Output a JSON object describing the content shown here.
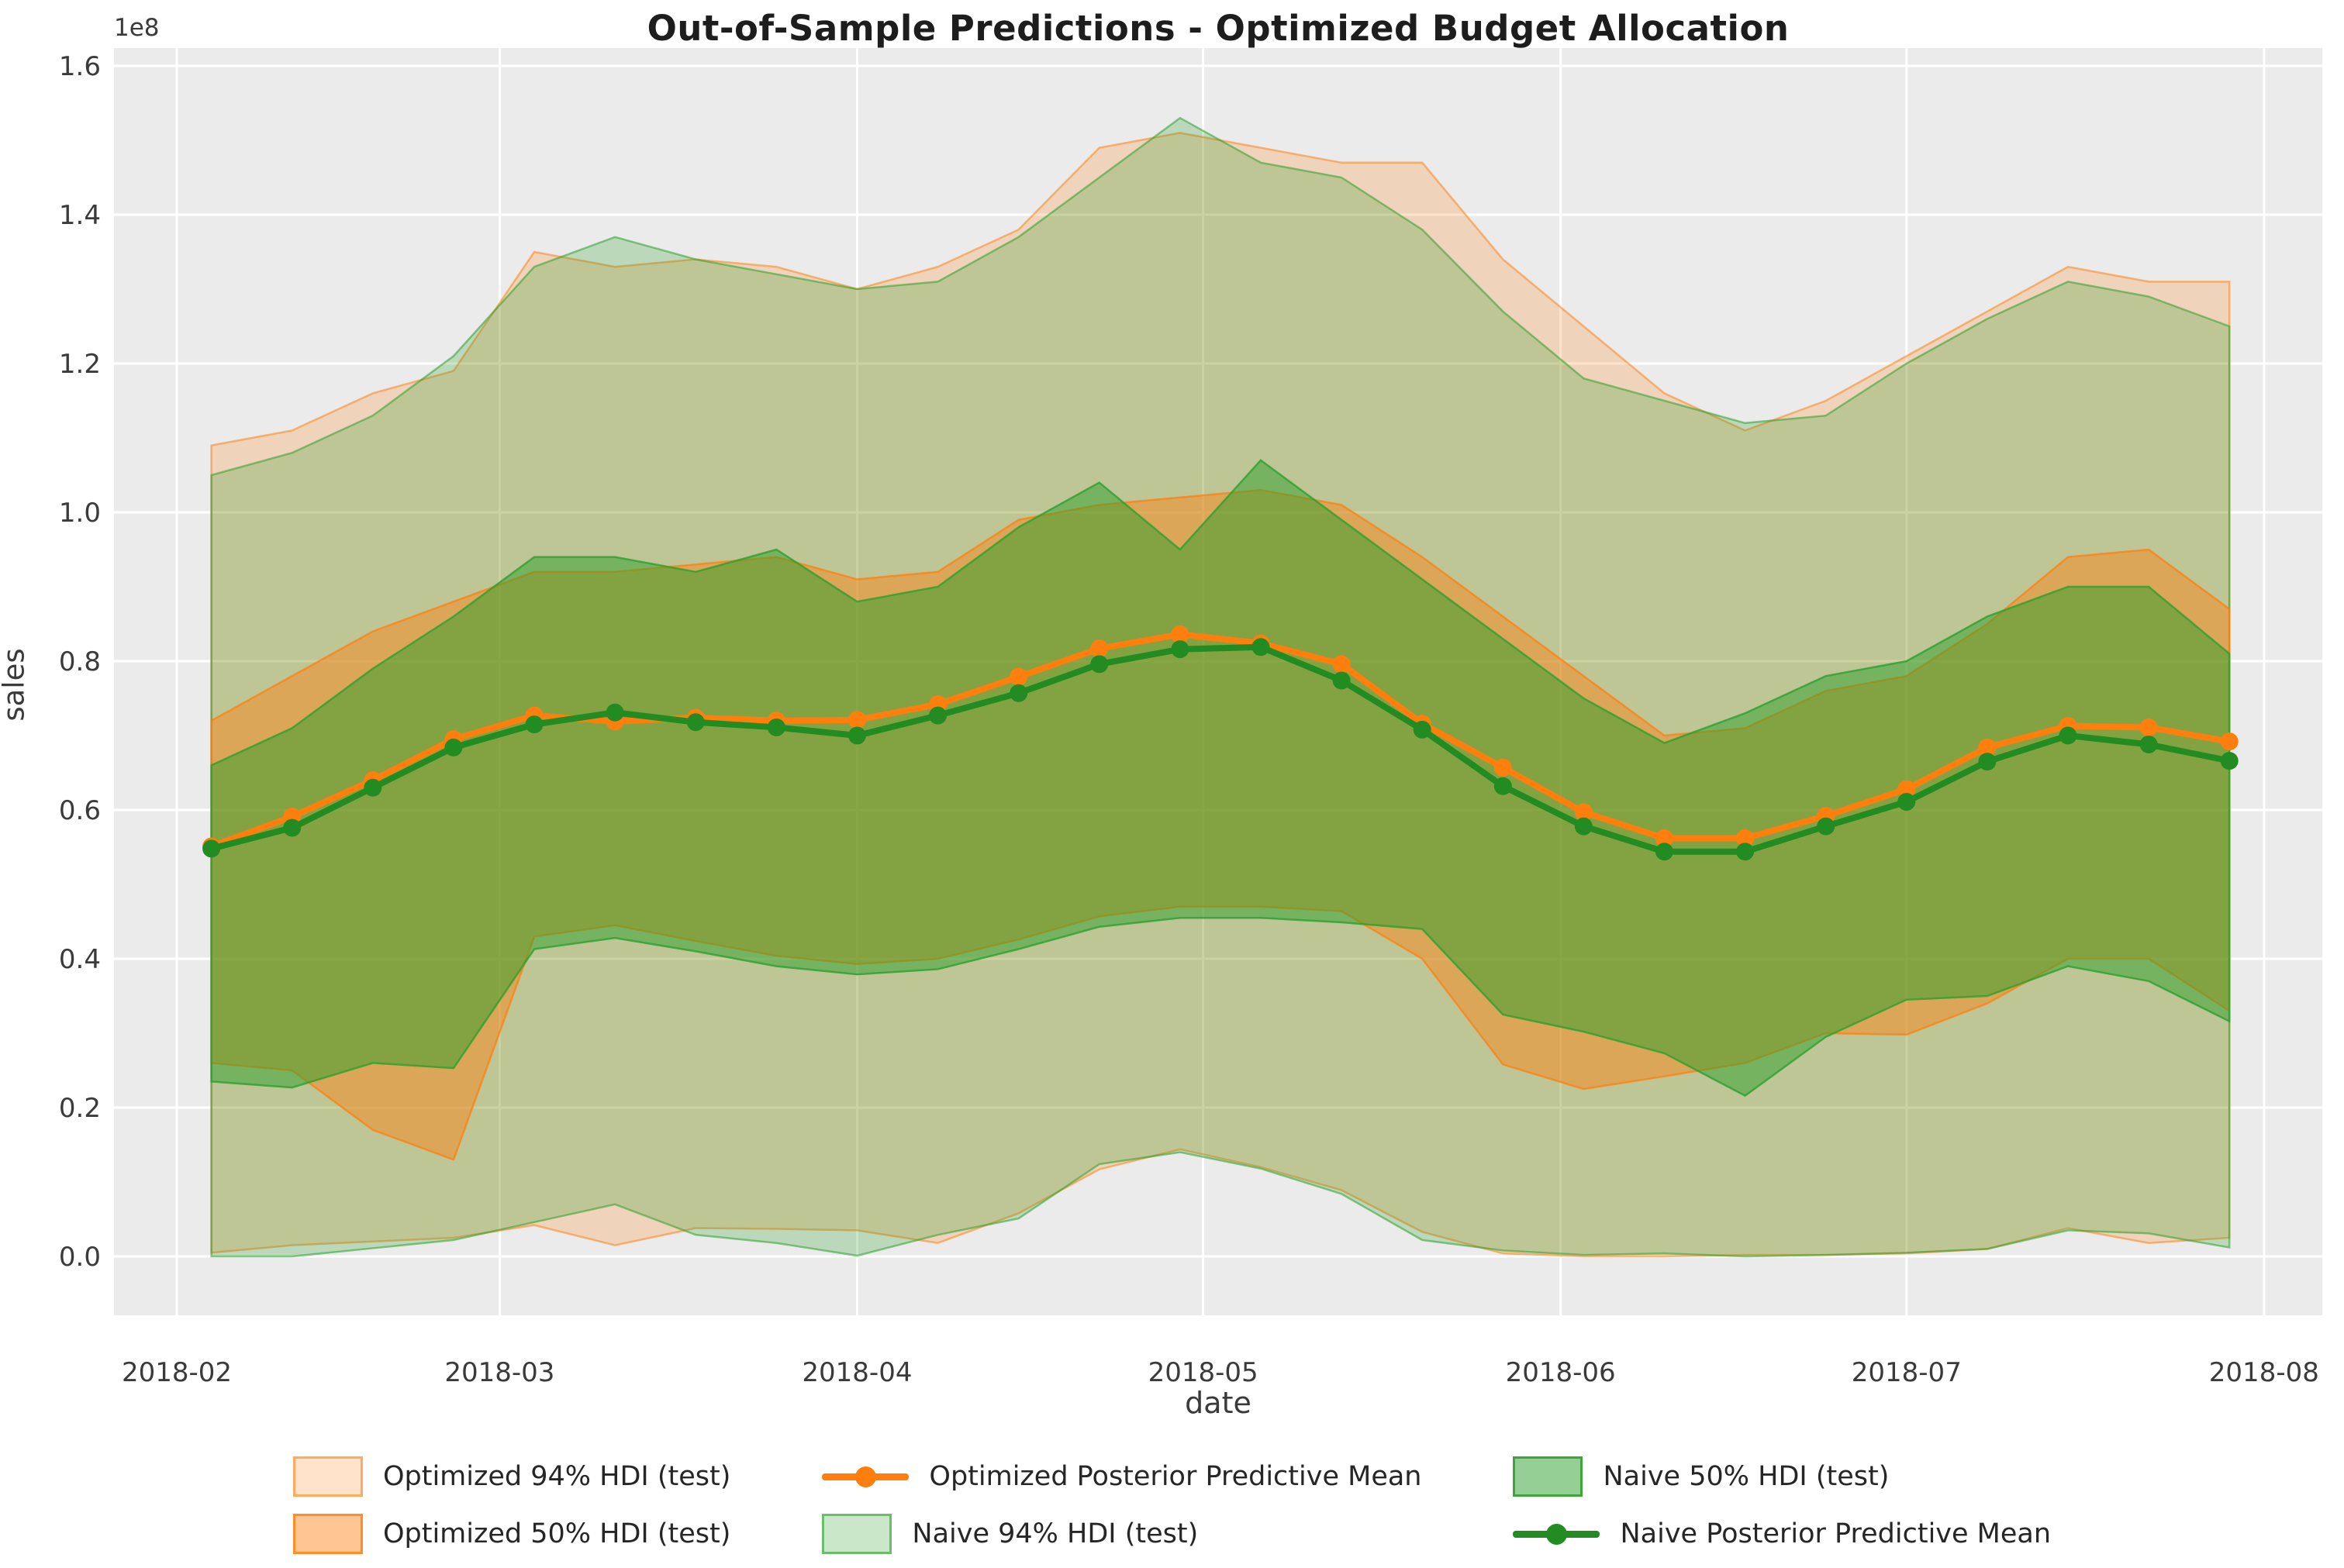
{
  "figure": {
    "title": "Out-of-Sample Predictions - Optimized Budget Allocation",
    "background_color": "#ffffff",
    "plot_background_color": "#ebebeb",
    "grid_color": "#ffffff"
  },
  "axes": {
    "xlabel": "date",
    "ylabel": "sales",
    "y_offset_label": "1e8"
  },
  "chart_data": {
    "type": "line",
    "title": "Out-of-Sample Predictions - Optimized Budget Allocation",
    "xlabel": "date",
    "ylabel": "sales",
    "y_scale_note": "values in 1e8 units",
    "ylim": [
      0.0,
      1.6
    ],
    "grid": true,
    "x_ticks": [
      {
        "label": "2018-02",
        "day": 0
      },
      {
        "label": "2018-03",
        "day": 28
      },
      {
        "label": "2018-04",
        "day": 59
      },
      {
        "label": "2018-05",
        "day": 89
      },
      {
        "label": "2018-06",
        "day": 120
      },
      {
        "label": "2018-07",
        "day": 150
      },
      {
        "label": "2018-08",
        "day": 181
      }
    ],
    "y_ticks": [
      {
        "label": "0.0",
        "value": 0.0
      },
      {
        "label": "0.2",
        "value": 0.2
      },
      {
        "label": "0.4",
        "value": 0.4
      },
      {
        "label": "0.6",
        "value": 0.6
      },
      {
        "label": "0.8",
        "value": 0.8
      },
      {
        "label": "1.0",
        "value": 1.0
      },
      {
        "label": "1.2",
        "value": 1.2
      },
      {
        "label": "1.4",
        "value": 1.4
      },
      {
        "label": "1.6",
        "value": 1.6
      }
    ],
    "dates": [
      "2018-02-04",
      "2018-02-11",
      "2018-02-18",
      "2018-02-25",
      "2018-03-04",
      "2018-03-11",
      "2018-03-18",
      "2018-03-25",
      "2018-04-01",
      "2018-04-08",
      "2018-04-15",
      "2018-04-22",
      "2018-04-29",
      "2018-05-06",
      "2018-05-13",
      "2018-05-20",
      "2018-05-27",
      "2018-06-03",
      "2018-06-10",
      "2018-06-17",
      "2018-06-24",
      "2018-07-01",
      "2018-07-08",
      "2018-07-15",
      "2018-07-22",
      "2018-07-29"
    ],
    "day_offsets": [
      3,
      10,
      17,
      24,
      31,
      38,
      45,
      52,
      59,
      66,
      73,
      80,
      87,
      94,
      101,
      108,
      115,
      122,
      129,
      136,
      143,
      150,
      157,
      164,
      171,
      178
    ],
    "bands": [
      {
        "name": "Optimized 94% HDI (test)",
        "color": "#ff7f0e",
        "alpha": 0.22,
        "upper": [
          1.09,
          1.11,
          1.16,
          1.19,
          1.35,
          1.33,
          1.34,
          1.33,
          1.3,
          1.33,
          1.38,
          1.49,
          1.51,
          1.49,
          1.47,
          1.47,
          1.34,
          1.25,
          1.16,
          1.11,
          1.15,
          1.21,
          1.27,
          1.33,
          1.31,
          1.31
        ],
        "lower": [
          0.005,
          0.015,
          0.02,
          0.025,
          0.042,
          0.015,
          0.038,
          0.037,
          0.035,
          0.018,
          0.058,
          0.117,
          0.144,
          0.12,
          0.089,
          0.033,
          0.004,
          0.0,
          0.0,
          0.002,
          0.002,
          0.004,
          0.01,
          0.038,
          0.018,
          0.025
        ]
      },
      {
        "name": "Naive 94% HDI (test)",
        "color": "#2ca02c",
        "alpha": 0.25,
        "upper": [
          1.05,
          1.08,
          1.13,
          1.21,
          1.33,
          1.37,
          1.34,
          1.32,
          1.3,
          1.31,
          1.37,
          1.45,
          1.53,
          1.47,
          1.45,
          1.38,
          1.27,
          1.18,
          1.15,
          1.12,
          1.13,
          1.2,
          1.26,
          1.31,
          1.29,
          1.25
        ],
        "lower": [
          0.0,
          0.0,
          0.011,
          0.022,
          0.046,
          0.07,
          0.029,
          0.018,
          0.001,
          0.029,
          0.051,
          0.124,
          0.14,
          0.118,
          0.084,
          0.022,
          0.008,
          0.002,
          0.004,
          0.0,
          0.002,
          0.005,
          0.01,
          0.035,
          0.031,
          0.012
        ]
      },
      {
        "name": "Optimized 50% HDI (test)",
        "color": "#ff7f0e",
        "alpha": 0.45,
        "upper": [
          0.72,
          0.78,
          0.84,
          0.88,
          0.92,
          0.92,
          0.93,
          0.94,
          0.91,
          0.92,
          0.99,
          1.01,
          1.02,
          1.03,
          1.01,
          0.94,
          0.86,
          0.78,
          0.7,
          0.71,
          0.76,
          0.78,
          0.85,
          0.94,
          0.95,
          0.87
        ],
        "lower": [
          0.26,
          0.25,
          0.17,
          0.13,
          0.43,
          0.445,
          0.424,
          0.404,
          0.393,
          0.4,
          0.426,
          0.457,
          0.47,
          0.47,
          0.464,
          0.4,
          0.258,
          0.225,
          0.242,
          0.26,
          0.3,
          0.298,
          0.34,
          0.4,
          0.4,
          0.33
        ]
      },
      {
        "name": "Naive 50% HDI (test)",
        "color": "#2ca02c",
        "alpha": 0.5,
        "upper": [
          0.66,
          0.71,
          0.79,
          0.86,
          0.94,
          0.94,
          0.92,
          0.95,
          0.88,
          0.9,
          0.98,
          1.04,
          0.95,
          1.07,
          0.99,
          0.91,
          0.83,
          0.75,
          0.69,
          0.73,
          0.78,
          0.8,
          0.86,
          0.9,
          0.9,
          0.81
        ],
        "lower": [
          0.235,
          0.227,
          0.26,
          0.253,
          0.413,
          0.428,
          0.41,
          0.39,
          0.379,
          0.386,
          0.413,
          0.443,
          0.455,
          0.455,
          0.449,
          0.44,
          0.325,
          0.302,
          0.273,
          0.216,
          0.295,
          0.345,
          0.35,
          0.39,
          0.37,
          0.316
        ]
      }
    ],
    "series": [
      {
        "name": "Optimized Posterior Predictive Mean",
        "color": "#ff7f0e",
        "values": [
          0.551,
          0.591,
          0.64,
          0.695,
          0.727,
          0.719,
          0.724,
          0.72,
          0.721,
          0.742,
          0.779,
          0.817,
          0.836,
          0.824,
          0.796,
          0.716,
          0.657,
          0.597,
          0.562,
          0.562,
          0.592,
          0.628,
          0.684,
          0.713,
          0.711,
          0.692
        ]
      },
      {
        "name": "Naive Posterior Predictive Mean",
        "color": "#228b22",
        "values": [
          0.548,
          0.576,
          0.63,
          0.684,
          0.715,
          0.731,
          0.718,
          0.711,
          0.7,
          0.727,
          0.757,
          0.796,
          0.816,
          0.819,
          0.774,
          0.708,
          0.632,
          0.578,
          0.544,
          0.544,
          0.578,
          0.611,
          0.665,
          0.7,
          0.688,
          0.666
        ]
      }
    ],
    "legend": {
      "position": "bottom center, 2 rows x 3 columns",
      "columns": [
        [
          {
            "label": "Optimized 94% HDI (test)",
            "swatch": "patch",
            "color": "#ff7f0e",
            "alpha": 0.22
          },
          {
            "label": "Optimized 50% HDI (test)",
            "swatch": "patch",
            "color": "#ff7f0e",
            "alpha": 0.45
          }
        ],
        [
          {
            "label": "Optimized Posterior Predictive Mean",
            "swatch": "line",
            "color": "#ff7f0e",
            "alpha": 1
          },
          {
            "label": "Naive 94% HDI (test)",
            "swatch": "patch",
            "color": "#2ca02c",
            "alpha": 0.25
          }
        ],
        [
          {
            "label": "Naive 50% HDI (test)",
            "swatch": "patch",
            "color": "#2ca02c",
            "alpha": 0.5
          },
          {
            "label": "Naive Posterior Predictive Mean",
            "swatch": "line",
            "color": "#228b22",
            "alpha": 1
          }
        ]
      ]
    }
  }
}
